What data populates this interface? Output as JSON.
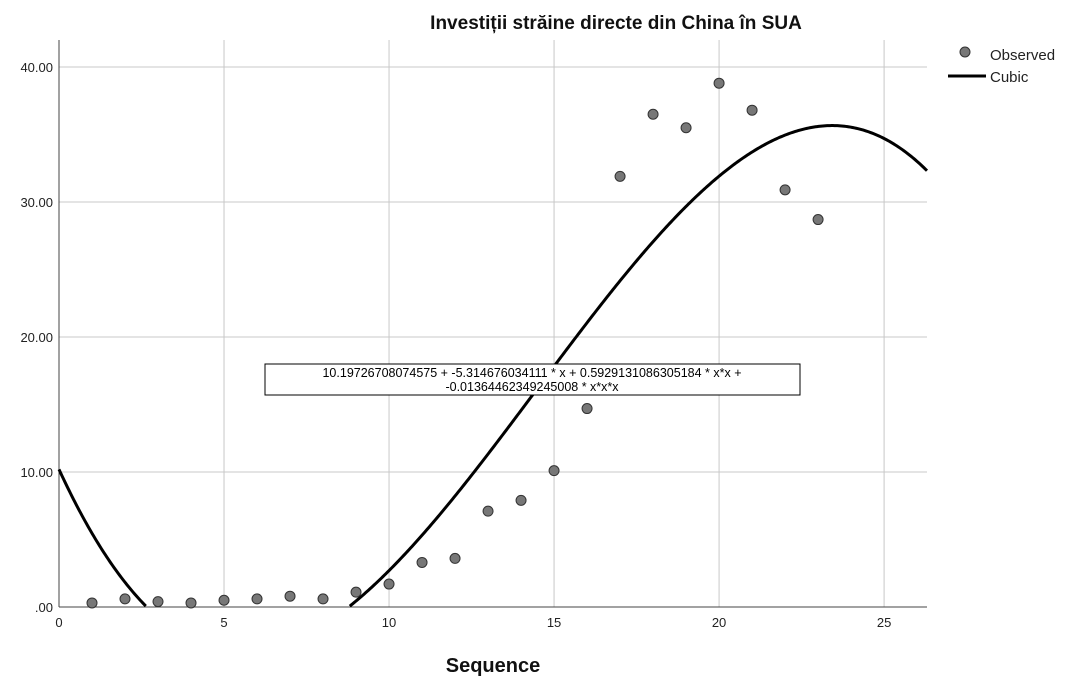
{
  "chart_data": {
    "type": "scatter",
    "title": "Investiții străine directe din China în SUA",
    "xlabel": "Sequence",
    "ylabel": "",
    "xlim": [
      0,
      26.3
    ],
    "ylim": [
      0,
      42
    ],
    "x_ticks": [
      "0",
      "5",
      "10",
      "15",
      "20",
      "25"
    ],
    "x_tick_values": [
      0,
      5,
      10,
      15,
      20,
      25
    ],
    "y_ticks": [
      ".00",
      "10.00",
      "20.00",
      "30.00",
      "40.00"
    ],
    "y_tick_values": [
      0,
      10,
      20,
      30,
      40
    ],
    "grid": true,
    "legend_position": "top-right",
    "series": [
      {
        "name": "Observed",
        "kind": "points",
        "color": "#777777",
        "x": [
          1,
          2,
          3,
          4,
          5,
          6,
          7,
          8,
          9,
          10,
          11,
          12,
          13,
          14,
          15,
          16,
          17,
          18,
          19,
          20,
          21,
          22,
          23
        ],
        "y": [
          0.3,
          0.6,
          0.4,
          0.3,
          0.5,
          0.6,
          0.8,
          0.6,
          1.1,
          1.7,
          3.3,
          3.6,
          7.1,
          7.9,
          10.1,
          14.7,
          31.9,
          36.5,
          35.5,
          38.8,
          36.8,
          30.9,
          28.7
        ]
      },
      {
        "name": "Cubic",
        "kind": "curve",
        "color": "#000000",
        "coefficients": [
          10.19726708074575,
          -5.314676034111,
          0.5929131086305184,
          -0.01364462349245008
        ]
      }
    ],
    "annotation": {
      "line1": "10.19726708074575 + -5.314676034111 * x + 0.5929131086305184 * x*x +",
      "line2": "-0.01364462349245008 * x*x*x"
    }
  }
}
